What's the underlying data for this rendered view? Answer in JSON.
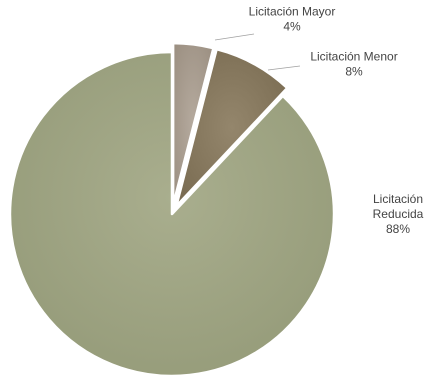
{
  "chart_data": {
    "type": "pie",
    "title": "",
    "start_angle_deg": 0,
    "direction": "clockwise",
    "slices": [
      {
        "label": "Licitación Mayor",
        "value": 4,
        "value_label": "4%",
        "color": "#a69a8d",
        "exploded": true
      },
      {
        "label": "Licitación Menor",
        "value": 8,
        "value_label": "8%",
        "color": "#84765d",
        "exploded": true
      },
      {
        "label": "Licitación Reducida",
        "label_lines": [
          "Licitación",
          "Reducida"
        ],
        "value": 88,
        "value_label": "88%",
        "color": "#9fa583",
        "exploded": false
      }
    ],
    "legend": "none",
    "data_labels": "outside",
    "colors": {
      "background": "#ffffff",
      "label_text": "#444444",
      "leader_line": "#a0a0a0",
      "slice_edge": "#ffffff"
    }
  }
}
